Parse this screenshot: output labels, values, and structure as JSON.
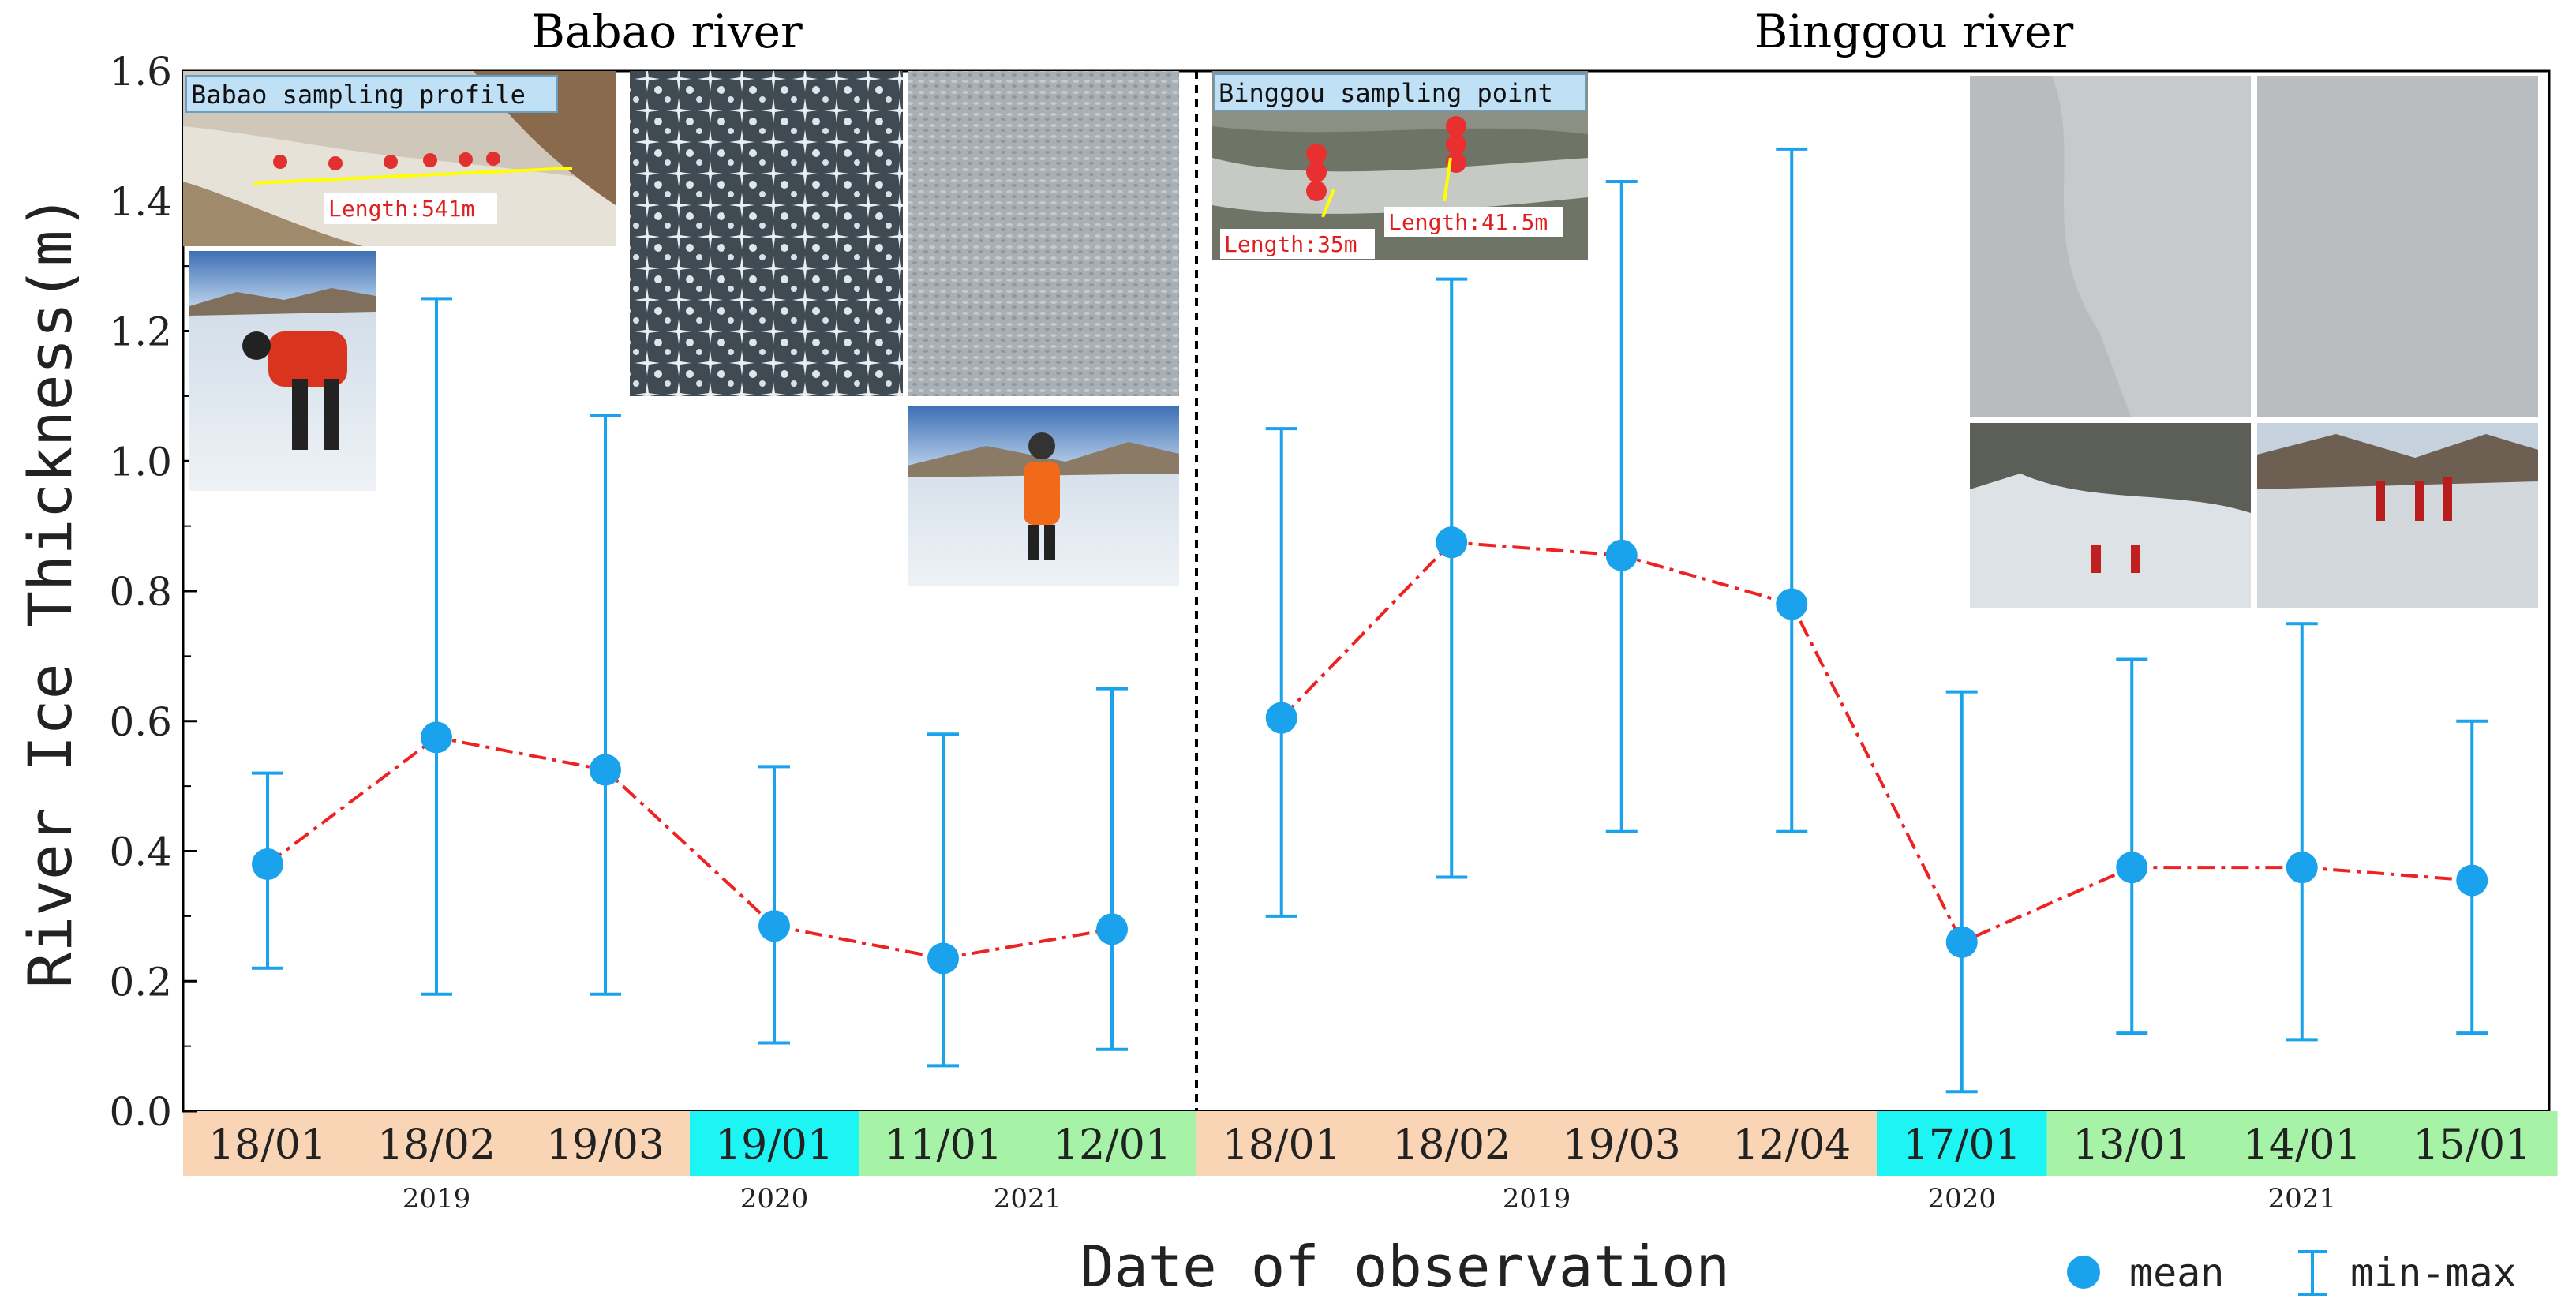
{
  "chart_data": {
    "type": "scatter",
    "panels": [
      {
        "title": "Babao river",
        "categories": [
          "18/01",
          "18/02",
          "19/03",
          "19/01",
          "11/01",
          "12/01"
        ],
        "years": [
          "2019",
          "2019",
          "2019",
          "2020",
          "2021",
          "2021"
        ],
        "mean": [
          0.38,
          0.575,
          0.525,
          0.285,
          0.235,
          0.28
        ],
        "min": [
          0.22,
          0.18,
          0.18,
          0.105,
          0.07,
          0.095
        ],
        "max": [
          0.52,
          1.25,
          1.07,
          0.53,
          0.58,
          0.65
        ]
      },
      {
        "title": "Binggou river",
        "categories": [
          "18/01",
          "18/02",
          "19/03",
          "12/04",
          "17/01",
          "13/01",
          "14/01",
          "15/01"
        ],
        "years": [
          "2019",
          "2019",
          "2019",
          "2019",
          "2020",
          "2021",
          "2021",
          "2021"
        ],
        "mean": [
          0.605,
          0.875,
          0.855,
          0.78,
          0.26,
          0.375,
          0.375,
          0.355
        ],
        "min": [
          0.3,
          0.36,
          0.43,
          0.43,
          0.03,
          0.12,
          0.11,
          0.12
        ],
        "max": [
          1.05,
          1.28,
          1.43,
          1.48,
          0.645,
          0.695,
          0.75,
          0.6
        ]
      }
    ],
    "year_groups": [
      {
        "label": "2019",
        "color": "#f9d5b5"
      },
      {
        "label": "2020",
        "color": "#1df5f5"
      },
      {
        "label": "2021",
        "color": "#a6f2a6"
      }
    ],
    "xlabel": "Date of observation",
    "ylabel": "River Ice Thickness(m)",
    "ylim": [
      0.0,
      1.6
    ],
    "yticks": [
      "0.0",
      "0.2",
      "0.4",
      "0.6",
      "0.8",
      "1.0",
      "1.2",
      "1.4",
      "1.6"
    ],
    "legend": {
      "mean": "mean",
      "range": "min-max",
      "placement": "bottom-right"
    },
    "colors": {
      "marker": "#1aa3ec",
      "line": "#ee2222",
      "axis": "#000000"
    }
  },
  "insets": {
    "babao_profile": {
      "caption": "Babao sampling profile",
      "length": "Length:541m"
    },
    "binggou_point": {
      "caption": "Binggou sampling point",
      "length_left": "Length:35m",
      "length_right": "Length:41.5m"
    }
  }
}
